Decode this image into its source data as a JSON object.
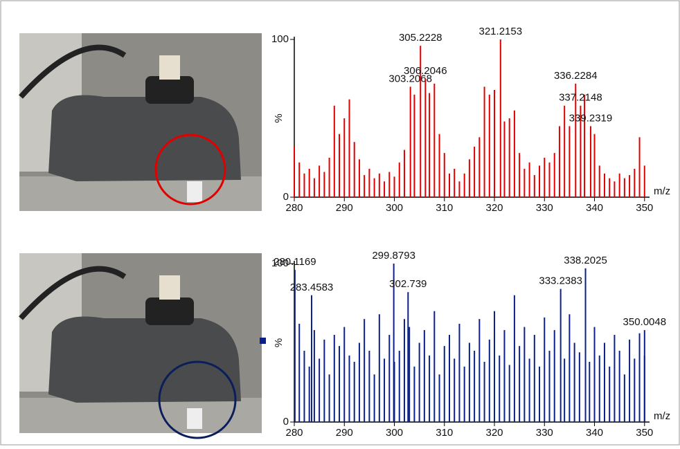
{
  "chart_data": [
    {
      "type": "spectrum",
      "color": "#e00000",
      "xlabel": "m/z",
      "ylabel": "%",
      "xlim": [
        280,
        351
      ],
      "ylim": [
        0,
        100
      ],
      "xticks": [
        280,
        290,
        300,
        310,
        320,
        330,
        340,
        350
      ],
      "yticks": [
        0,
        100
      ],
      "x": [
        280,
        281,
        282,
        283,
        284,
        285,
        286,
        287,
        288,
        289,
        290,
        291,
        292,
        293,
        294,
        295,
        296,
        297,
        298,
        299,
        300,
        301,
        302,
        304,
        307,
        308,
        309,
        310,
        311,
        312,
        313,
        314,
        315,
        316,
        317,
        318,
        319,
        320,
        322,
        323,
        324,
        325,
        326,
        327,
        328,
        329,
        330,
        331,
        332,
        333,
        334,
        335,
        338,
        340,
        341,
        342,
        343,
        344,
        345,
        346,
        347,
        348,
        349,
        350
      ],
      "values": [
        32,
        22,
        15,
        18,
        12,
        20,
        16,
        25,
        58,
        40,
        50,
        62,
        35,
        24,
        14,
        18,
        12,
        15,
        10,
        16,
        13,
        22,
        30,
        65,
        66,
        72,
        40,
        28,
        15,
        18,
        10,
        15,
        24,
        32,
        38,
        70,
        65,
        68,
        48,
        50,
        55,
        28,
        18,
        22,
        14,
        20,
        25,
        22,
        28,
        45,
        58,
        45,
        65,
        40,
        20,
        15,
        12,
        10,
        15,
        12,
        14,
        18,
        38,
        20
      ],
      "annotations": [
        {
          "x": 303.2068,
          "y": 70
        },
        {
          "x": 305.2228,
          "y": 96
        },
        {
          "x": 306.2046,
          "y": 75
        },
        {
          "x": 321.2153,
          "y": 100
        },
        {
          "x": 336.2284,
          "y": 72
        },
        {
          "x": 337.2148,
          "y": 58
        },
        {
          "x": 339.2319,
          "y": 45
        }
      ]
    },
    {
      "type": "spectrum",
      "color": "#0a1f8a",
      "xlabel": "m/z",
      "ylabel": "%",
      "xlim": [
        280,
        351
      ],
      "ylim": [
        0,
        100
      ],
      "xticks": [
        280,
        290,
        300,
        310,
        320,
        330,
        340,
        350
      ],
      "yticks": [
        0,
        100
      ],
      "x": [
        281,
        282,
        283,
        284,
        285,
        286,
        287,
        288,
        289,
        290,
        291,
        292,
        293,
        294,
        295,
        296,
        297,
        298,
        299,
        300,
        301,
        302,
        303,
        304,
        305,
        306,
        307,
        308,
        309,
        310,
        311,
        312,
        313,
        314,
        315,
        316,
        317,
        318,
        319,
        320,
        321,
        322,
        323,
        324,
        325,
        326,
        327,
        328,
        329,
        330,
        331,
        332,
        334,
        335,
        336,
        337,
        339,
        340,
        341,
        342,
        343,
        344,
        345,
        346,
        347,
        348,
        349,
        350
      ],
      "values": [
        62,
        45,
        35,
        58,
        40,
        52,
        30,
        55,
        48,
        60,
        42,
        38,
        50,
        65,
        45,
        30,
        68,
        40,
        55,
        38,
        45,
        65,
        60,
        35,
        50,
        58,
        42,
        70,
        30,
        48,
        55,
        40,
        62,
        35,
        50,
        45,
        65,
        38,
        52,
        70,
        42,
        58,
        36,
        80,
        48,
        60,
        40,
        55,
        35,
        66,
        45,
        58,
        40,
        68,
        50,
        44,
        38,
        60,
        42,
        50,
        35,
        55,
        45,
        30,
        52,
        40,
        56,
        42
      ],
      "annotations": [
        {
          "x": 280.1169,
          "y": 96
        },
        {
          "x": 283.4583,
          "y": 80
        },
        {
          "x": 299.8793,
          "y": 100
        },
        {
          "x": 302.739,
          "y": 82
        },
        {
          "x": 333.2383,
          "y": 84
        },
        {
          "x": 338.2025,
          "y": 97
        },
        {
          "x": 350.0048,
          "y": 58
        }
      ]
    }
  ]
}
